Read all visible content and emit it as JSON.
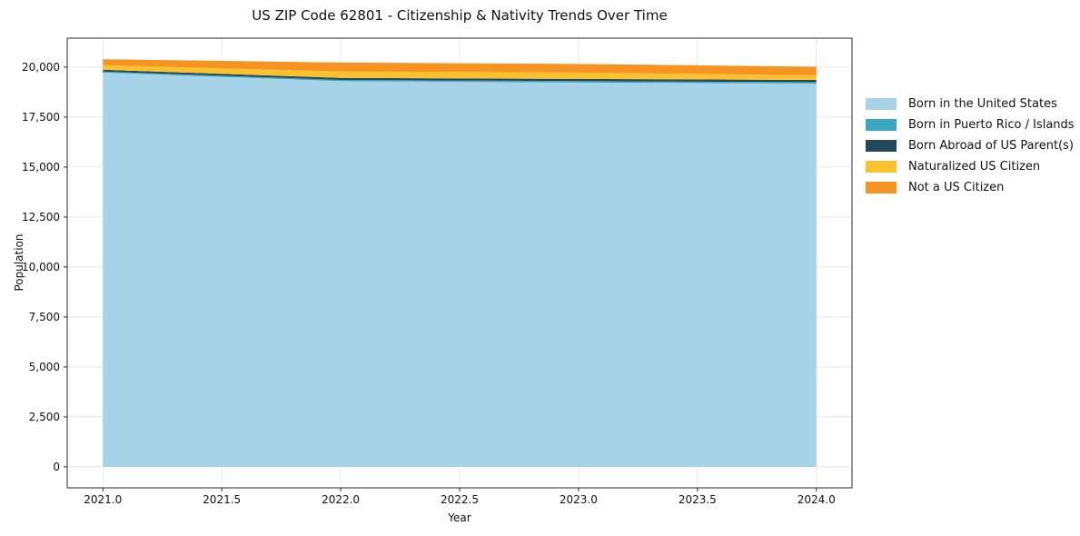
{
  "title": "US ZIP Code 62801 - Citizenship & Nativity Trends Over Time",
  "chart_data": {
    "type": "area",
    "stacked": true,
    "title": "US ZIP Code 62801 - Citizenship & Nativity Trends Over Time",
    "xlabel": "Year",
    "ylabel": "Population",
    "x": [
      2021,
      2022,
      2023,
      2024
    ],
    "series": [
      {
        "name": "Born in the United States",
        "color": "#A6D3E8",
        "values": [
          19730,
          19300,
          19230,
          19180
        ]
      },
      {
        "name": "Born in Puerto Rico / Islands",
        "color": "#3AA6BF",
        "values": [
          50,
          60,
          70,
          70
        ]
      },
      {
        "name": "Born Abroad of US Parent(s)",
        "color": "#25495C",
        "values": [
          90,
          100,
          110,
          110
        ]
      },
      {
        "name": "Naturalized US Citizen",
        "color": "#FCC22D",
        "values": [
          230,
          320,
          320,
          230
        ]
      },
      {
        "name": "Not a US Citizen",
        "color": "#F69321",
        "values": [
          295,
          450,
          430,
          430
        ]
      }
    ],
    "xticks": [
      2021.0,
      2021.5,
      2022.0,
      2022.5,
      2023.0,
      2023.5,
      2024.0
    ],
    "xtick_labels": [
      "2021.0",
      "2021.5",
      "2022.0",
      "2022.5",
      "2023.0",
      "2023.5",
      "2024.0"
    ],
    "yticks": [
      0,
      2500,
      5000,
      7500,
      10000,
      12500,
      15000,
      17500,
      20000
    ],
    "ytick_labels": [
      "0",
      "2,500",
      "5,000",
      "7,500",
      "10,000",
      "12,500",
      "15,000",
      "17,500",
      "20,000"
    ],
    "xlim": [
      2020.85,
      2024.15
    ],
    "ylim": [
      -1050,
      21450
    ],
    "grid": true,
    "legend_position": "right",
    "grid_color": "#e8e8e8",
    "spine_color": "#2a2a2a",
    "text_color": "#111111"
  }
}
